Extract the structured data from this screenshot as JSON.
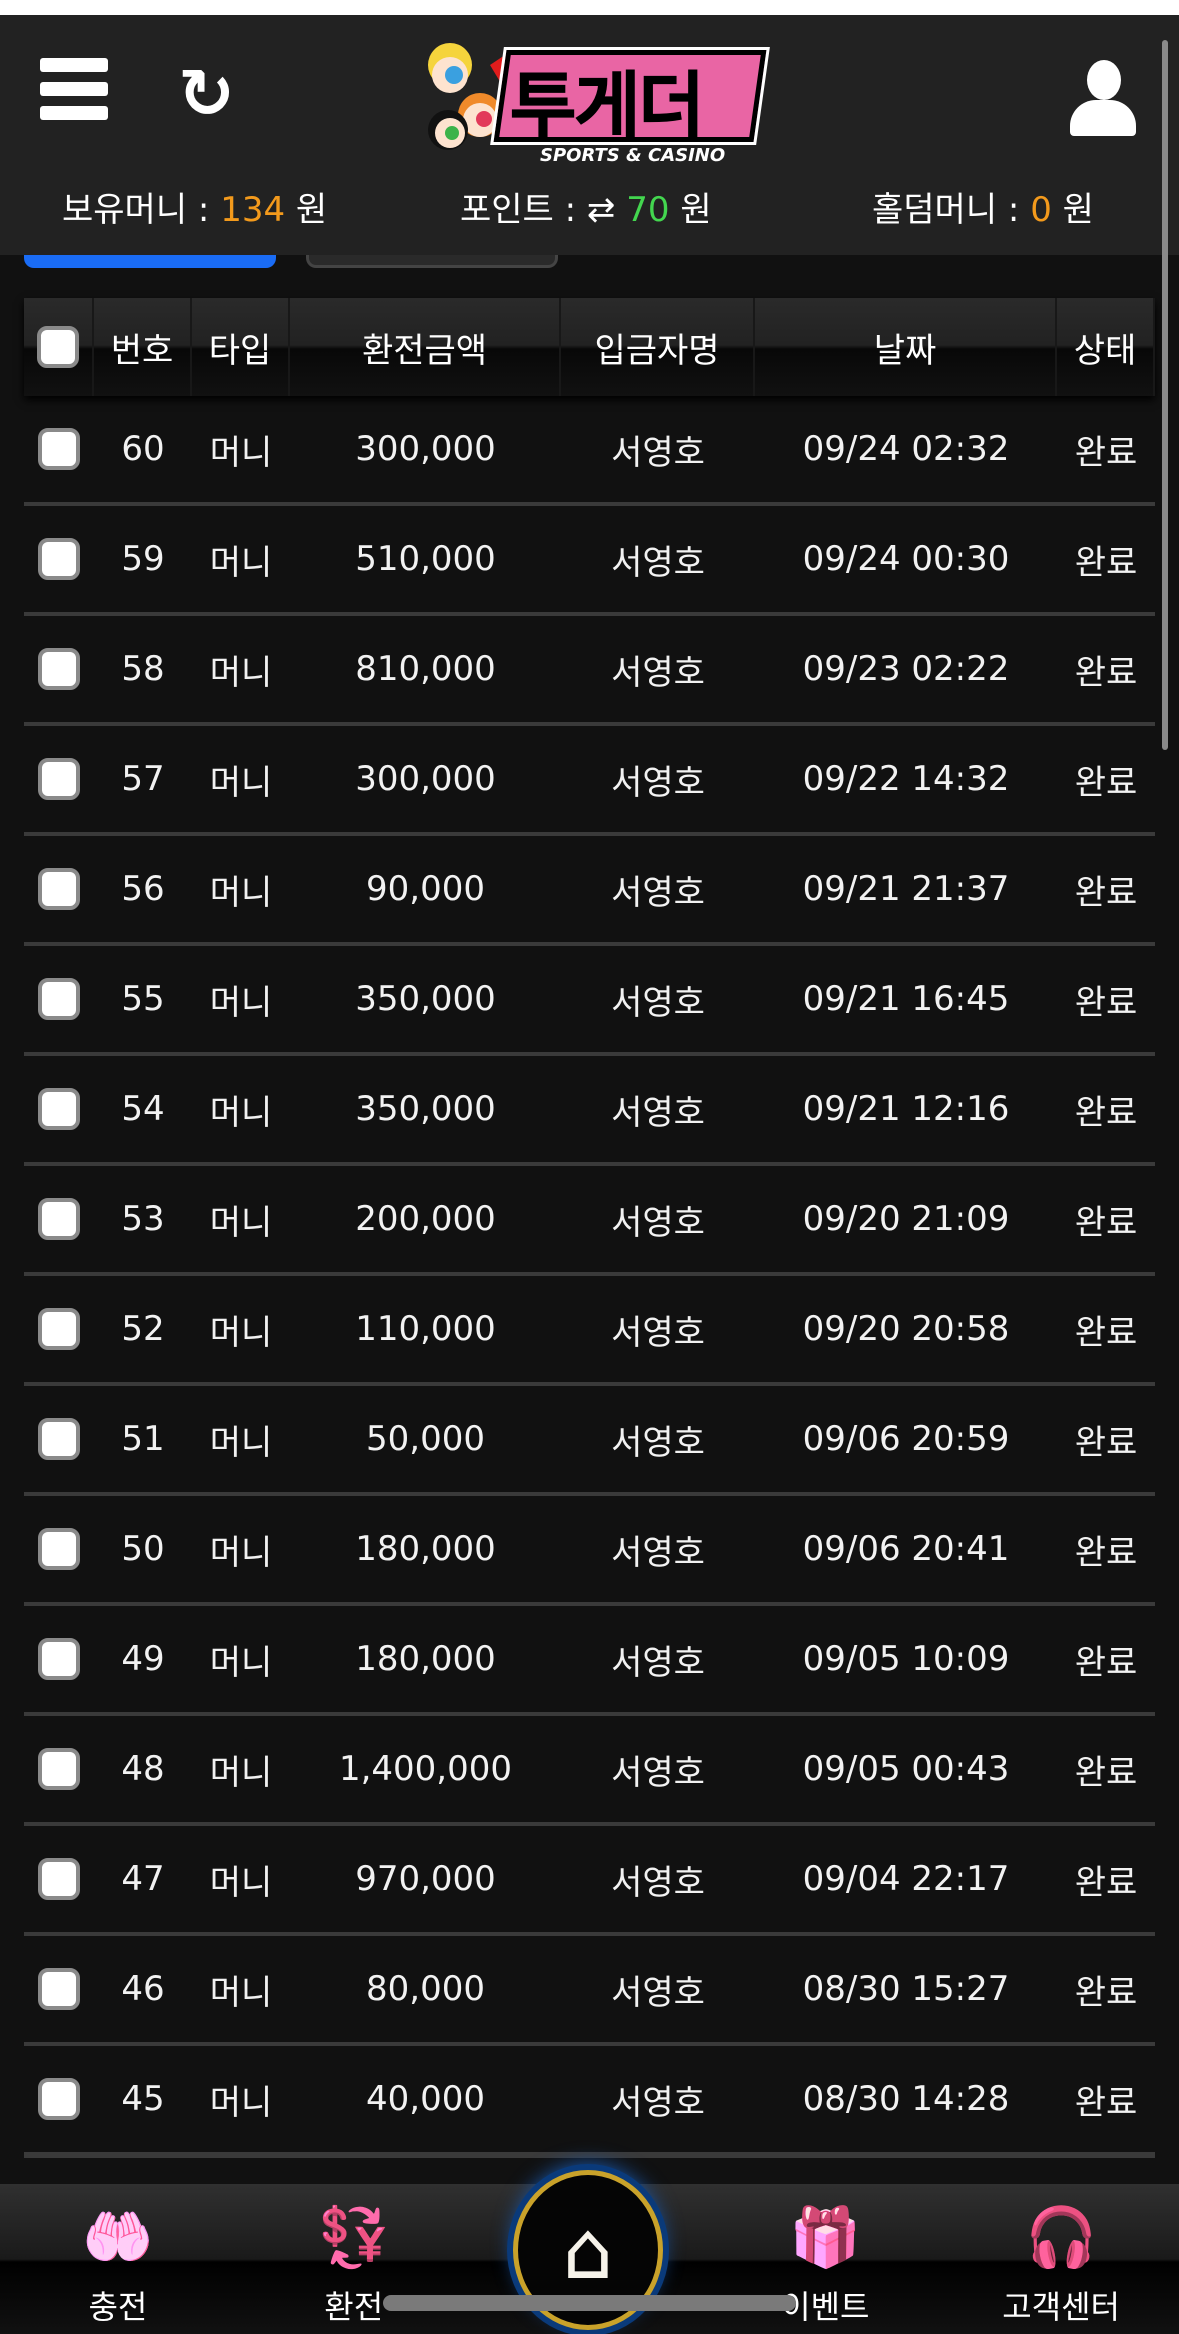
{
  "header": {
    "logo_text": "투게더",
    "logo_sub": "SPORTS & CASINO",
    "balance_label": "보유머니 :",
    "balance": "134",
    "balance_unit": "원",
    "point_label": "포인트 :",
    "point_icon": "⇄",
    "point": "70",
    "point_unit": "원",
    "holdem_label": "홀덤머니 :",
    "holdem": "0",
    "holdem_unit": "원"
  },
  "table": {
    "columns": [
      "번호",
      "타입",
      "환전금액",
      "입금자명",
      "날짜",
      "상태"
    ],
    "rows": [
      {
        "no": "60",
        "type": "머니",
        "amount": "300,000",
        "name": "서영호",
        "date": "09/24 02:32",
        "status": "완료"
      },
      {
        "no": "59",
        "type": "머니",
        "amount": "510,000",
        "name": "서영호",
        "date": "09/24 00:30",
        "status": "완료"
      },
      {
        "no": "58",
        "type": "머니",
        "amount": "810,000",
        "name": "서영호",
        "date": "09/23 02:22",
        "status": "완료"
      },
      {
        "no": "57",
        "type": "머니",
        "amount": "300,000",
        "name": "서영호",
        "date": "09/22 14:32",
        "status": "완료"
      },
      {
        "no": "56",
        "type": "머니",
        "amount": "90,000",
        "name": "서영호",
        "date": "09/21 21:37",
        "status": "완료"
      },
      {
        "no": "55",
        "type": "머니",
        "amount": "350,000",
        "name": "서영호",
        "date": "09/21 16:45",
        "status": "완료"
      },
      {
        "no": "54",
        "type": "머니",
        "amount": "350,000",
        "name": "서영호",
        "date": "09/21 12:16",
        "status": "완료"
      },
      {
        "no": "53",
        "type": "머니",
        "amount": "200,000",
        "name": "서영호",
        "date": "09/20 21:09",
        "status": "완료"
      },
      {
        "no": "52",
        "type": "머니",
        "amount": "110,000",
        "name": "서영호",
        "date": "09/20 20:58",
        "status": "완료"
      },
      {
        "no": "51",
        "type": "머니",
        "amount": "50,000",
        "name": "서영호",
        "date": "09/06 20:59",
        "status": "완료"
      },
      {
        "no": "50",
        "type": "머니",
        "amount": "180,000",
        "name": "서영호",
        "date": "09/06 20:41",
        "status": "완료"
      },
      {
        "no": "49",
        "type": "머니",
        "amount": "180,000",
        "name": "서영호",
        "date": "09/05 10:09",
        "status": "완료"
      },
      {
        "no": "48",
        "type": "머니",
        "amount": "1,400,000",
        "name": "서영호",
        "date": "09/05 00:43",
        "status": "완료"
      },
      {
        "no": "47",
        "type": "머니",
        "amount": "970,000",
        "name": "서영호",
        "date": "09/04 22:17",
        "status": "완료"
      },
      {
        "no": "46",
        "type": "머니",
        "amount": "80,000",
        "name": "서영호",
        "date": "08/30 15:27",
        "status": "완료"
      },
      {
        "no": "45",
        "type": "머니",
        "amount": "40,000",
        "name": "서영호",
        "date": "08/30 14:28",
        "status": "완료"
      }
    ]
  },
  "nav": [
    {
      "label": "충전",
      "icon": "hand-coin-icon"
    },
    {
      "label": "환전",
      "icon": "coin-exchange-icon"
    },
    {
      "label": "",
      "icon": "home-icon"
    },
    {
      "label": "이벤트",
      "icon": "gift-icon"
    },
    {
      "label": "고객센터",
      "icon": "headset-icon"
    }
  ],
  "colors": {
    "accent": "#1a6cf5",
    "balance": "#f39a1c",
    "point": "#43d64f",
    "nav_icon": "#ef7bb2"
  }
}
